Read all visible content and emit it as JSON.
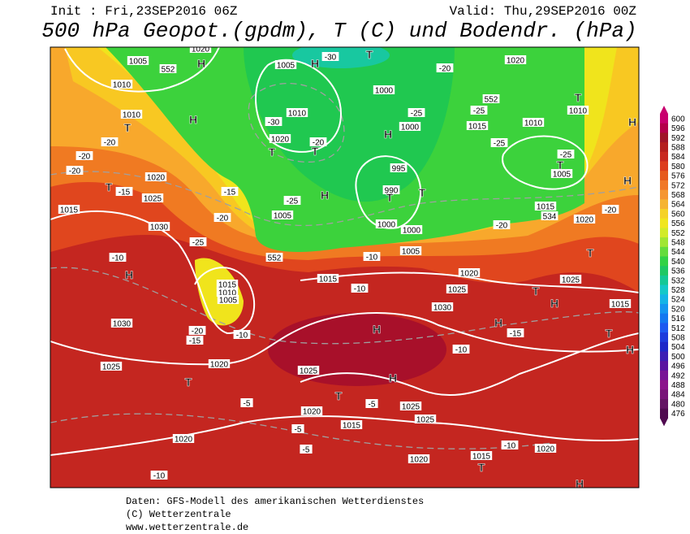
{
  "header": {
    "init": "Init : Fri,23SEP2016 06Z",
    "valid": "Valid: Thu,29SEP2016 00Z",
    "title": "500 hPa Geopot.(gpdm), T (C) und Bodendr. (hPa)"
  },
  "map": {
    "labels": [
      1005,
      552,
      1010,
      1010,
      "T",
      "H",
      "H",
      1020,
      1005,
      "H",
      -30,
      "T",
      1020,
      -20,
      552,
      -25,
      1015,
      1010,
      "T",
      1010,
      "H",
      -25,
      -25,
      "T",
      1005,
      "H",
      1010,
      -30,
      "T",
      "T",
      -20,
      1020,
      1000,
      -25,
      1000,
      "H",
      995,
      990,
      "T",
      "T",
      "H",
      -25,
      1005,
      1000,
      1000,
      1005,
      1015,
      534,
      1020,
      -20,
      -20,
      "T",
      1025,
      "T",
      1020,
      1025,
      1015,
      -10,
      552,
      -10,
      1030,
      1015,
      1010,
      1005,
      -20,
      -15,
      -10,
      1030,
      "H",
      -10,
      -25,
      -20,
      1030,
      1015,
      1025,
      1020,
      "T",
      -15,
      -20,
      -20,
      -20,
      -15,
      "H",
      1025,
      "H",
      "T",
      1025,
      1020,
      -10,
      "H",
      -15,
      "H",
      1015,
      "T",
      "H",
      "T",
      -5,
      1020,
      -5,
      1025,
      1025,
      -5,
      1015,
      -5,
      1020,
      -10,
      1020,
      1015,
      "T",
      -10,
      1020,
      "H"
    ]
  },
  "colorbar": {
    "levels": [
      600,
      596,
      592,
      588,
      584,
      580,
      576,
      572,
      568,
      564,
      560,
      556,
      552,
      548,
      544,
      540,
      536,
      532,
      528,
      524,
      520,
      516,
      512,
      508,
      504,
      500,
      496,
      492,
      488,
      484,
      480,
      476
    ],
    "colors": [
      "#c8006e",
      "#b4004a",
      "#a01428",
      "#b41e1e",
      "#c82820",
      "#dc3c1e",
      "#e65a1e",
      "#f07828",
      "#f59632",
      "#f5b432",
      "#f5d228",
      "#f0e61e",
      "#d2eb28",
      "#a0e632",
      "#64dc3c",
      "#32d246",
      "#1ec864",
      "#14c896",
      "#14c8c8",
      "#14b4e6",
      "#1496f0",
      "#1478f0",
      "#1e5af0",
      "#1e3cdc",
      "#1e28c8",
      "#3c1eb4",
      "#5a14a0",
      "#781496",
      "#8c148c",
      "#781478",
      "#641464",
      "#500a50"
    ]
  },
  "footer": {
    "source": "Daten: GFS-Modell des amerikanischen Wetterdienstes",
    "copyright": "(C) Wetterzentrale",
    "url": "www.wetterzentrale.de"
  }
}
